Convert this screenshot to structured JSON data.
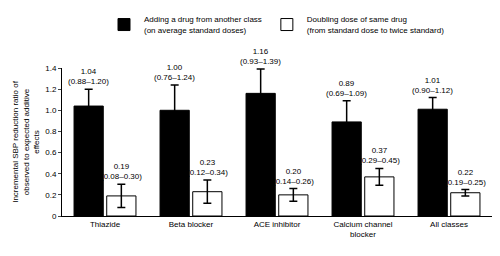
{
  "chart_data": {
    "type": "bar",
    "categories": [
      "Thiazide",
      "Beta blocker",
      "ACE inhibitor",
      "Calcium channel blocker",
      "All classes"
    ],
    "series": [
      {
        "name": "Adding a drug from another class (on average standard doses)",
        "color": "#000000",
        "values": [
          1.04,
          1.0,
          1.16,
          0.89,
          1.01
        ],
        "value_labels": [
          "1.04",
          "1.00",
          "1.16",
          "0.89",
          "1.01"
        ],
        "ci_low": [
          0.88,
          0.76,
          0.93,
          0.69,
          0.9
        ],
        "ci_high": [
          1.2,
          1.24,
          1.39,
          1.09,
          1.12
        ],
        "ci_labels": [
          "(0.88–1.20)",
          "(0.76–1.24)",
          "(0.93–1.39)",
          "(0.69–1.09)",
          "(0.90–1.12)"
        ]
      },
      {
        "name": "Doubling dose of same drug (from standard dose to twice standard)",
        "color": "#ffffff",
        "values": [
          0.19,
          0.23,
          0.2,
          0.37,
          0.22
        ],
        "value_labels": [
          "0.19",
          "0.23",
          "0.20",
          "0.37",
          "0.22"
        ],
        "ci_low": [
          0.08,
          0.12,
          0.14,
          0.29,
          0.19
        ],
        "ci_high": [
          0.3,
          0.34,
          0.26,
          0.45,
          0.25
        ],
        "ci_labels": [
          "(0.08–0.30)",
          "(0.12–0.34)",
          "(0.14–0.26)",
          "(0.29–0.45)",
          "(0.19–0.25)"
        ]
      }
    ],
    "y_label": "Incremental SBP reduction ratio of observed to expected additive effects",
    "ylim": [
      0,
      1.4
    ],
    "yticks": [
      0,
      0.2,
      0.4,
      0.6,
      0.8,
      {
        "value": 1,
        "label": "1.0"
      },
      1.2,
      1.4
    ],
    "grid": false,
    "legend": "top",
    "data_labels": true
  }
}
